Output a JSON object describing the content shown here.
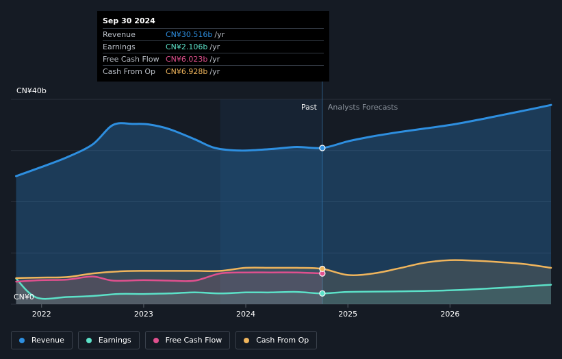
{
  "tooltip": {
    "date": "Sep 30 2024",
    "rows": [
      {
        "label": "Revenue",
        "value": "CN¥30.516b",
        "unit": "/yr",
        "color": "#2e8fe0"
      },
      {
        "label": "Earnings",
        "value": "CN¥2.106b",
        "unit": "/yr",
        "color": "#5ce1c8"
      },
      {
        "label": "Free Cash Flow",
        "value": "CN¥6.023b",
        "unit": "/yr",
        "color": "#e0508e"
      },
      {
        "label": "Cash From Op",
        "value": "CN¥6.928b",
        "unit": "/yr",
        "color": "#f0b55c"
      }
    ]
  },
  "labels": {
    "past": "Past",
    "forecast": "Analysts Forecasts"
  },
  "legend": [
    {
      "label": "Revenue",
      "color": "#2e8fe0"
    },
    {
      "label": "Earnings",
      "color": "#5ce1c8"
    },
    {
      "label": "Free Cash Flow",
      "color": "#e0508e"
    },
    {
      "label": "Cash From Op",
      "color": "#f0b55c"
    }
  ],
  "chart_data": {
    "type": "line",
    "y_tick_labels": [
      "CN¥0",
      "CN¥40b"
    ],
    "ylim": [
      0,
      40
    ],
    "xlim": [
      2021.7,
      2026.99
    ],
    "x_tick_labels": [
      "2022",
      "2023",
      "2024",
      "2025",
      "2026"
    ],
    "x_ticks": [
      2022,
      2023,
      2024,
      2025,
      2026
    ],
    "past_end": 2024.75,
    "grid": true,
    "series": [
      {
        "name": "Revenue",
        "color": "#2e8fe0",
        "points": [
          [
            2021.75,
            25.0
          ],
          [
            2022.0,
            26.8
          ],
          [
            2022.25,
            28.7
          ],
          [
            2022.5,
            31.2
          ],
          [
            2022.7,
            35.0
          ],
          [
            2022.9,
            35.2
          ],
          [
            2023.05,
            35.1
          ],
          [
            2023.25,
            34.2
          ],
          [
            2023.5,
            32.2
          ],
          [
            2023.7,
            30.5
          ],
          [
            2023.95,
            30.0
          ],
          [
            2024.25,
            30.3
          ],
          [
            2024.5,
            30.7
          ],
          [
            2024.75,
            30.5
          ],
          [
            2025.0,
            31.8
          ],
          [
            2025.25,
            32.8
          ],
          [
            2025.5,
            33.6
          ],
          [
            2025.75,
            34.3
          ],
          [
            2026.0,
            35.0
          ],
          [
            2026.25,
            35.9
          ],
          [
            2026.5,
            36.9
          ],
          [
            2026.75,
            37.9
          ],
          [
            2026.99,
            38.9
          ]
        ]
      },
      {
        "name": "Earnings",
        "color": "#5ce1c8",
        "points": [
          [
            2021.75,
            5.0
          ],
          [
            2021.95,
            1.3
          ],
          [
            2022.25,
            1.4
          ],
          [
            2022.5,
            1.6
          ],
          [
            2022.75,
            2.0
          ],
          [
            2023.0,
            2.0
          ],
          [
            2023.25,
            2.1
          ],
          [
            2023.5,
            2.3
          ],
          [
            2023.75,
            2.1
          ],
          [
            2024.0,
            2.3
          ],
          [
            2024.25,
            2.3
          ],
          [
            2024.5,
            2.4
          ],
          [
            2024.75,
            2.1
          ],
          [
            2025.0,
            2.4
          ],
          [
            2025.5,
            2.5
          ],
          [
            2026.0,
            2.7
          ],
          [
            2026.5,
            3.2
          ],
          [
            2026.99,
            3.8
          ]
        ]
      },
      {
        "name": "Free Cash Flow",
        "color": "#e0508e",
        "points": [
          [
            2021.75,
            4.4
          ],
          [
            2022.0,
            4.7
          ],
          [
            2022.25,
            4.8
          ],
          [
            2022.5,
            5.4
          ],
          [
            2022.7,
            4.6
          ],
          [
            2023.0,
            4.7
          ],
          [
            2023.25,
            4.6
          ],
          [
            2023.5,
            4.6
          ],
          [
            2023.75,
            6.0
          ],
          [
            2024.0,
            6.2
          ],
          [
            2024.25,
            6.2
          ],
          [
            2024.5,
            6.2
          ],
          [
            2024.75,
            6.0
          ]
        ]
      },
      {
        "name": "Cash From Op",
        "color": "#f0b55c",
        "points": [
          [
            2021.75,
            5.1
          ],
          [
            2022.0,
            5.2
          ],
          [
            2022.25,
            5.3
          ],
          [
            2022.5,
            6.0
          ],
          [
            2022.75,
            6.4
          ],
          [
            2023.0,
            6.5
          ],
          [
            2023.25,
            6.5
          ],
          [
            2023.5,
            6.5
          ],
          [
            2023.75,
            6.5
          ],
          [
            2024.0,
            7.1
          ],
          [
            2024.25,
            7.1
          ],
          [
            2024.5,
            7.1
          ],
          [
            2024.75,
            6.9
          ],
          [
            2025.0,
            5.7
          ],
          [
            2025.25,
            6.0
          ],
          [
            2025.5,
            7.0
          ],
          [
            2025.75,
            8.1
          ],
          [
            2026.0,
            8.6
          ],
          [
            2026.25,
            8.5
          ],
          [
            2026.5,
            8.2
          ],
          [
            2026.75,
            7.8
          ],
          [
            2026.99,
            7.1
          ]
        ]
      }
    ]
  }
}
